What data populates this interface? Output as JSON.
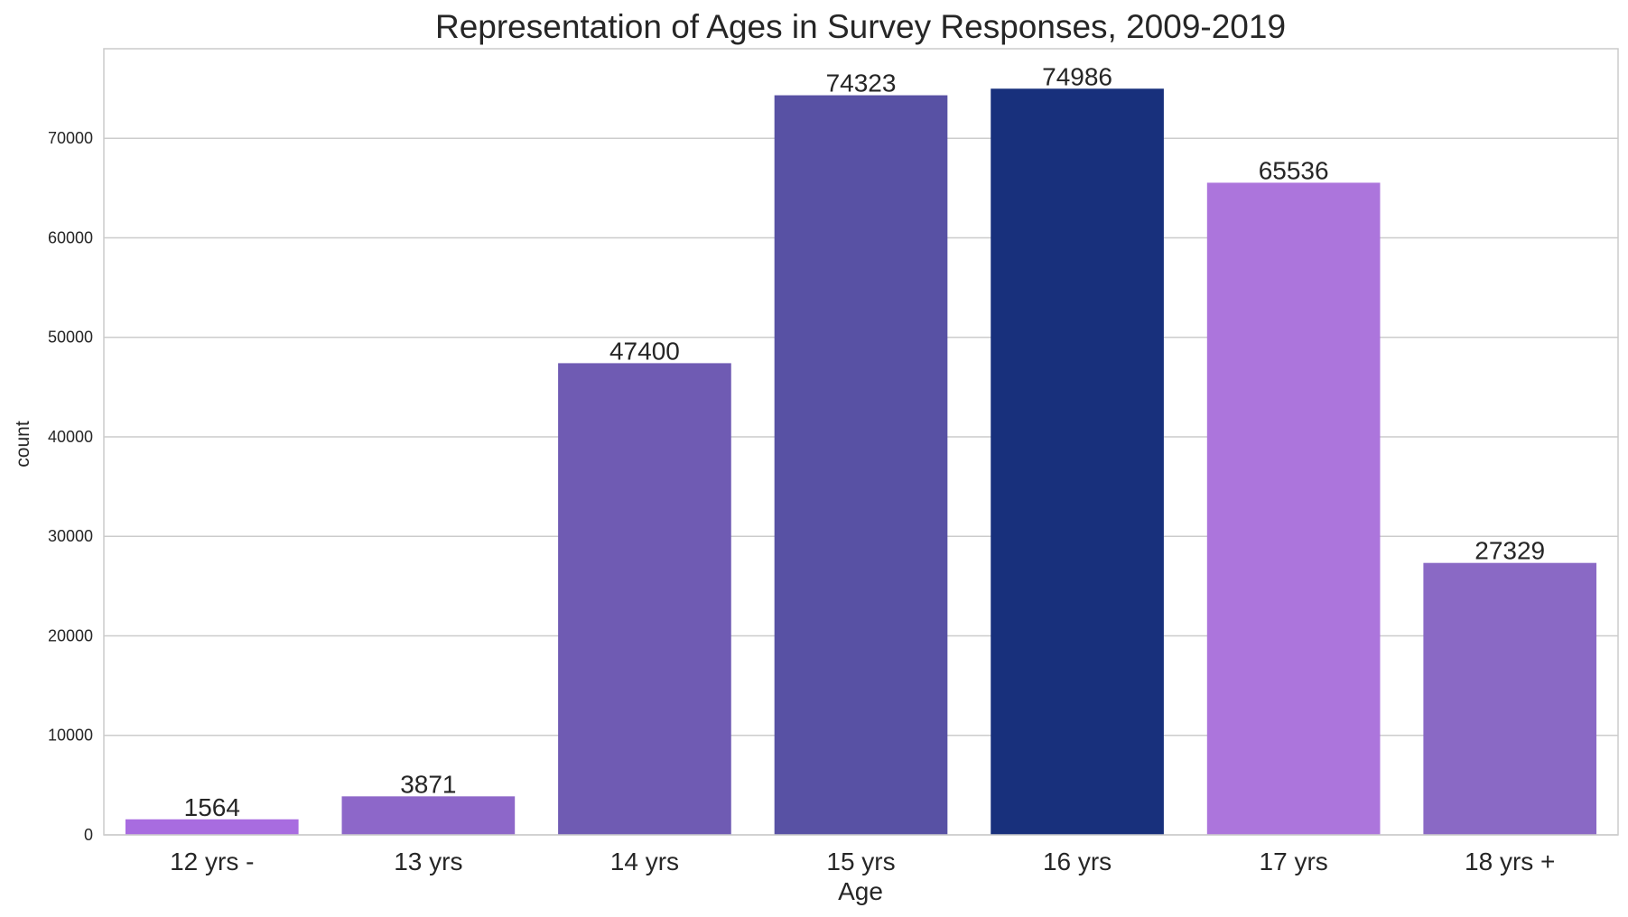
{
  "chart_data": {
    "type": "bar",
    "title": "Representation of Ages in Survey Responses, 2009-2019",
    "xlabel": "Age",
    "ylabel": "count",
    "categories": [
      "12 yrs -",
      "13 yrs",
      "14 yrs",
      "15 yrs",
      "16 yrs",
      "17 yrs",
      "18 yrs +"
    ],
    "values": [
      1564,
      3871,
      47400,
      74323,
      74986,
      65536,
      27329
    ],
    "data_labels": [
      "1564",
      "3871",
      "47400",
      "74323",
      "74986",
      "65536",
      "27329"
    ],
    "bar_colors": [
      "#a86ce0",
      "#8d67c9",
      "#6f5bb3",
      "#5851a4",
      "#18307c",
      "#ac75dc",
      "#8a69c5"
    ],
    "ylim": [
      0,
      79000
    ],
    "yticks": [
      0,
      10000,
      20000,
      30000,
      40000,
      50000,
      60000,
      70000
    ],
    "ytick_labels": [
      "0",
      "10000",
      "20000",
      "30000",
      "40000",
      "50000",
      "60000",
      "70000"
    ],
    "grid": true,
    "legend": "none"
  }
}
